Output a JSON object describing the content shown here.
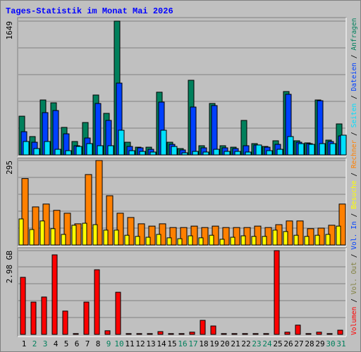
{
  "chart_data": [
    {
      "type": "bar",
      "title": "Tages-Statistik im Monat Mai 2026",
      "ylim": [
        0,
        1649
      ],
      "yticks": [
        1649
      ],
      "series": [
        {
          "name": "Anfragen",
          "color": "#00805c",
          "values": [
            477,
            226,
            677,
            642,
            339,
            165,
            399,
            738,
            512,
            1649,
            156,
            95,
            95,
            773,
            156,
            78,
            920,
            113,
            634,
            113,
            95,
            425,
            139,
            104,
            174,
            781,
            174,
            148,
            677,
            182,
            382
          ]
        },
        {
          "name": "Dateien",
          "color": "#0040ff",
          "values": [
            286,
            156,
            521,
            547,
            260,
            113,
            208,
            634,
            425,
            885,
            104,
            87,
            69,
            651,
            130,
            61,
            590,
            87,
            608,
            87,
            78,
            113,
            122,
            95,
            130,
            747,
            156,
            139,
            668,
            165,
            234
          ]
        },
        {
          "name": "Seiten",
          "color": "#00e0ff",
          "values": [
            165,
            78,
            165,
            69,
            52,
            104,
            139,
            113,
            113,
            304,
            52,
            43,
            35,
            304,
            104,
            26,
            43,
            35,
            69,
            43,
            43,
            35,
            122,
            52,
            69,
            226,
            139,
            130,
            139,
            139,
            243
          ]
        }
      ]
    },
    {
      "type": "bar",
      "ylim": [
        0,
        295
      ],
      "yticks": [
        295
      ],
      "series": [
        {
          "name": "Rechner",
          "color": "#ff8000",
          "values": [
            232,
            133,
            143,
            121,
            111,
            74,
            246,
            295,
            172,
            111,
            96,
            74,
            66,
            74,
            61,
            61,
            66,
            61,
            66,
            61,
            61,
            61,
            66,
            61,
            71,
            84,
            84,
            57,
            59,
            69,
            143
          ]
        },
        {
          "name": "Besuche",
          "color": "#ffff00",
          "values": [
            91,
            54,
            84,
            57,
            37,
            69,
            76,
            71,
            52,
            52,
            34,
            30,
            27,
            37,
            25,
            22,
            32,
            25,
            34,
            20,
            27,
            32,
            30,
            30,
            52,
            47,
            34,
            30,
            34,
            37,
            66
          ]
        }
      ]
    },
    {
      "type": "bar",
      "ylim": [
        0,
        2.98
      ],
      "yticks": [
        {
          "value": 2.98,
          "label": "2.98 GB"
        }
      ],
      "categories": [
        "1",
        "2",
        "3",
        "4",
        "5",
        "6",
        "7",
        "8",
        "9",
        "10",
        "11",
        "12",
        "13",
        "14",
        "15",
        "16",
        "17",
        "18",
        "19",
        "20",
        "21",
        "22",
        "23",
        "24",
        "25",
        "26",
        "27",
        "28",
        "29",
        "30",
        "31"
      ],
      "category_colors": [
        "#000000",
        "#00805c",
        "#00805c",
        "#000000",
        "#000000",
        "#000000",
        "#000000",
        "#000000",
        "#00805c",
        "#00805c",
        "#000000",
        "#000000",
        "#000000",
        "#000000",
        "#000000",
        "#00805c",
        "#00805c",
        "#000000",
        "#000000",
        "#000000",
        "#000000",
        "#000000",
        "#00805c",
        "#00805c",
        "#000000",
        "#000000",
        "#000000",
        "#000000",
        "#000000",
        "#00805c",
        "#00805c"
      ],
      "series": [
        {
          "name": "Volumen",
          "color": "#ff0000",
          "values": [
            2.03,
            1.15,
            1.33,
            2.83,
            0.83,
            0.03,
            1.15,
            2.3,
            0.13,
            1.5,
            0.03,
            0.03,
            0.03,
            0.1,
            0.03,
            0.03,
            0.08,
            0.5,
            0.3,
            0.03,
            0.03,
            0.03,
            0.03,
            0.03,
            2.98,
            0.08,
            0.33,
            0.03,
            0.08,
            0.03,
            0.15
          ]
        }
      ],
      "legend_extra": [
        {
          "name": "Vol. Out",
          "color": "#808040"
        },
        {
          "name": "Vol. In",
          "color": "#0040ff"
        }
      ]
    }
  ],
  "legend_separator": " / "
}
